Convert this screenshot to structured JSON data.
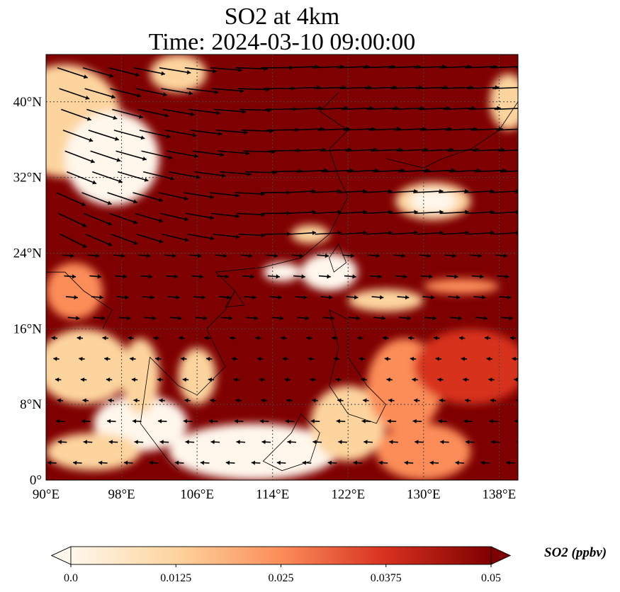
{
  "title": {
    "line1": "SO2 at 4km",
    "line2": "Time: 2024-03-10 09:00:00"
  },
  "chart_data": {
    "type": "heatmap",
    "title": "SO2 at 4km\nTime: 2024-03-10 09:00:00",
    "variable": "SO2",
    "level": "4km",
    "time": "2024-03-10 09:00:00",
    "lon_range": [
      90,
      140
    ],
    "lat_range": [
      0,
      45
    ],
    "xticks": [
      90,
      98,
      106,
      114,
      122,
      130,
      138
    ],
    "xtick_labels": [
      "90°E",
      "98°E",
      "106°E",
      "114°E",
      "122°E",
      "130°E",
      "138°E"
    ],
    "yticks": [
      0,
      8,
      16,
      24,
      32,
      40
    ],
    "ytick_labels": [
      "0°",
      "8°N",
      "16°N",
      "24°N",
      "32°N",
      "40°N"
    ],
    "grid": true,
    "overlay": "wind vectors",
    "colorbar": {
      "label": "SO2 (ppbv)",
      "range": [
        0.0,
        0.05
      ],
      "ticks": [
        0.0,
        0.0125,
        0.025,
        0.0375,
        0.05
      ],
      "tick_labels": [
        "0.0",
        "0.0125",
        "0.025",
        "0.0375",
        "0.05"
      ],
      "colormap": [
        "#fff7ec",
        "#fdd49e",
        "#fc8d59",
        "#d7301f",
        "#7f0000"
      ],
      "extend": "both",
      "placement": "bottom"
    }
  }
}
